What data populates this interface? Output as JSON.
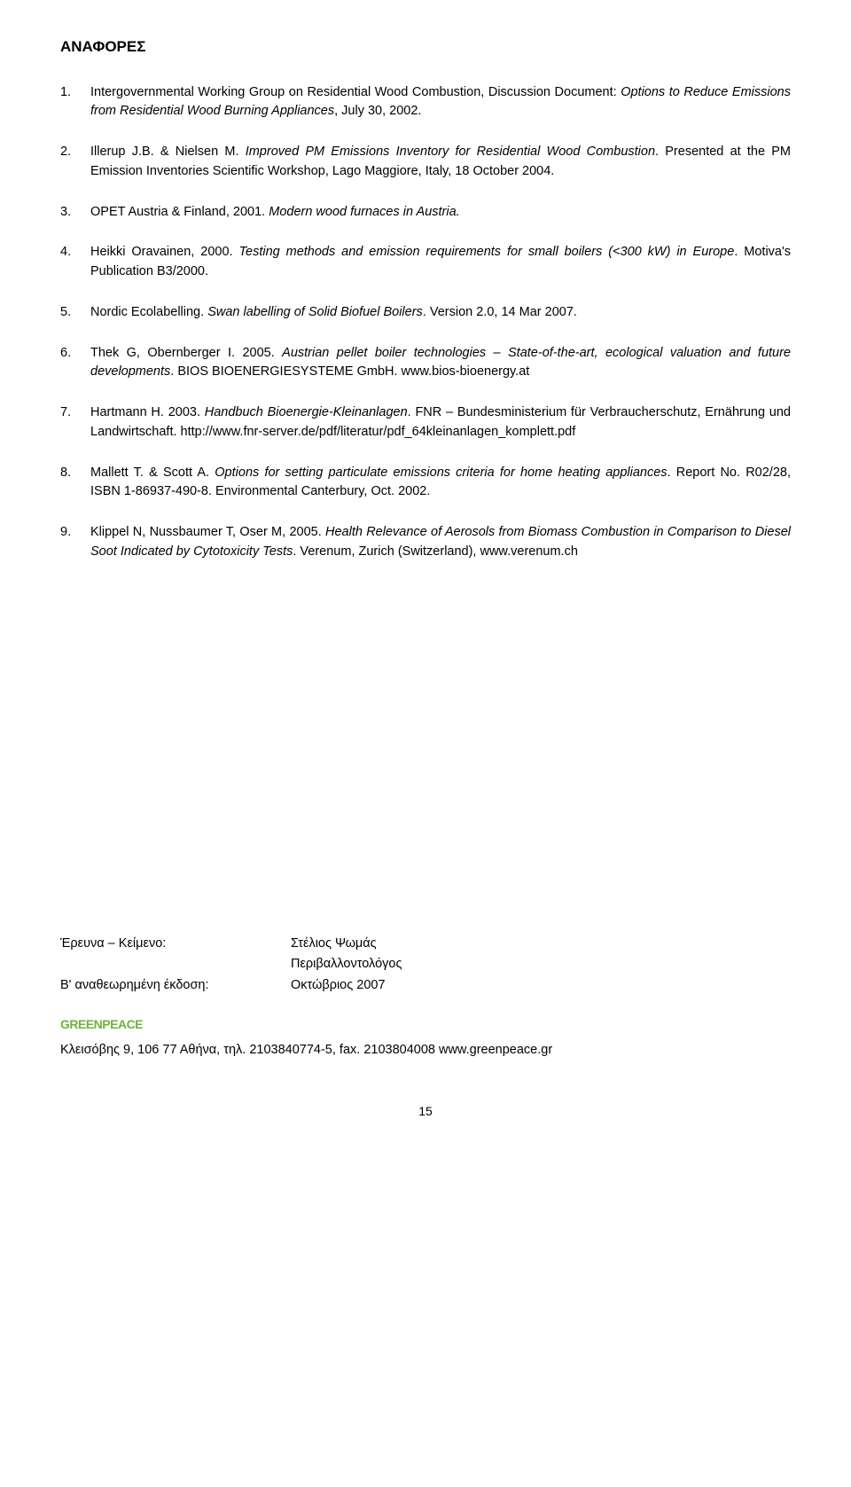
{
  "heading": "ΑΝΑΦΟΡΕΣ",
  "refs": [
    {
      "parts": [
        {
          "t": "Intergovernmental Working Group on Residential Wood Combustion, Discussion Document: ",
          "i": false
        },
        {
          "t": "Options to Reduce Emissions from Residential Wood Burning Appliances",
          "i": true
        },
        {
          "t": ", July 30, 2002.",
          "i": false
        }
      ]
    },
    {
      "parts": [
        {
          "t": "Illerup J.B. & Nielsen M. ",
          "i": false
        },
        {
          "t": "Improved PM Emissions Inventory for Residential Wood Combustion",
          "i": true
        },
        {
          "t": ". Presented at the PM Emission Inventories Scientific Workshop, Lago Maggiore, Italy, 18 October 2004.",
          "i": false
        }
      ]
    },
    {
      "parts": [
        {
          "t": "OPET Austria & Finland, 2001. ",
          "i": false
        },
        {
          "t": "Modern wood furnaces in Austria.",
          "i": true
        }
      ]
    },
    {
      "parts": [
        {
          "t": "Heikki Oravainen, 2000. ",
          "i": false
        },
        {
          "t": "Testing methods and emission requirements for small boilers (<300 kW) in Europe",
          "i": true
        },
        {
          "t": ". Motiva's Publication B3/2000.",
          "i": false
        }
      ]
    },
    {
      "parts": [
        {
          "t": "Nordic Ecolabelling. ",
          "i": false
        },
        {
          "t": "Swan labelling of Solid Biofuel Boilers",
          "i": true
        },
        {
          "t": ". Version 2.0, 14 Mar 2007.",
          "i": false
        }
      ]
    },
    {
      "parts": [
        {
          "t": "Thek G, Obernberger I. 2005. ",
          "i": false
        },
        {
          "t": "Austrian pellet boiler technologies – State-of-the-art, ecological valuation and future developments",
          "i": true
        },
        {
          "t": ". BIOS BIOENERGIESYSTEME GmbH. www.bios-bioenergy.at",
          "i": false
        }
      ]
    },
    {
      "parts": [
        {
          "t": "Hartmann H. 2003. ",
          "i": false
        },
        {
          "t": "Handbuch Bioenergie-Kleinanlagen",
          "i": true
        },
        {
          "t": ". FNR – Bundesministerium für Verbraucherschutz, Ernährung und Landwirtschaft. http://www.fnr-server.de/pdf/literatur/pdf_64kleinanlagen_komplett.pdf",
          "i": false
        }
      ]
    },
    {
      "parts": [
        {
          "t": "Mallett T. & Scott A. ",
          "i": false
        },
        {
          "t": "Options for setting particulate emissions criteria for home heating appliances",
          "i": true
        },
        {
          "t": ". Report No. R02/28, ISBN 1-86937-490-8. Environmental Canterbury, Oct. 2002.",
          "i": false
        }
      ]
    },
    {
      "parts": [
        {
          "t": "Klippel N, Nussbaumer T, Oser M, 2005. ",
          "i": false
        },
        {
          "t": "Health Relevance of Aerosols from Biomass Combustion in Comparison to Diesel Soot Indicated by Cytotoxicity Tests",
          "i": true
        },
        {
          "t": ". Verenum, Zurich (Switzerland), www.verenum.ch",
          "i": false
        }
      ]
    }
  ],
  "credits": {
    "row1_label": "Έρευνα – Κείμενο:",
    "row1_value_line1": "Στέλιος Ψωμάς",
    "row1_value_line2": "Περιβαλλοντολόγος",
    "row2_label": "Β' αναθεωρημένη έκδοση:",
    "row2_value": "Οκτώβριος 2007"
  },
  "logo_text": "GREENPEACE",
  "contact": "Κλεισόβης 9, 106 77 Αθήνα, τηλ. 2103840774-5, fax. 2103804008 www.greenpeace.gr",
  "page_number": "15"
}
